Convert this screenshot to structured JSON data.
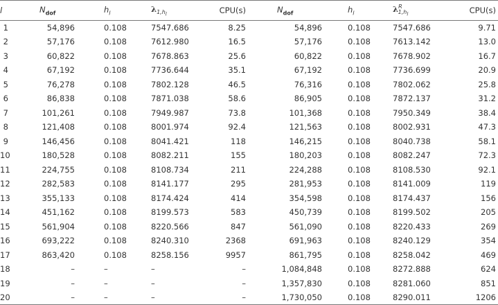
{
  "table": {
    "header": [
      {
        "main": "l"
      },
      {
        "main": "N",
        "sub": "dof"
      },
      {
        "main": "h",
        "sub": "l"
      },
      {
        "main": "λ",
        "sub": "1,h",
        "subsub": "l"
      },
      {
        "main": "CPU(s)"
      },
      {
        "main": "N",
        "sub": "dof"
      },
      {
        "main": "h",
        "sub": "l"
      },
      {
        "main": "λ",
        "sup": "R",
        "sub": "1,h",
        "subsub": "l"
      },
      {
        "main": "CPU(s)"
      }
    ],
    "rows": [
      [
        "1",
        "54,896",
        "0.108",
        "7547.686",
        "8.25",
        "54,896",
        "0.108",
        "7547.686",
        "9.71"
      ],
      [
        "2",
        "57,176",
        "0.108",
        "7612.980",
        "16.5",
        "57,176",
        "0.108",
        "7613.142",
        "13.0"
      ],
      [
        "3",
        "60,822",
        "0.108",
        "7678.863",
        "25.6",
        "60,822",
        "0.108",
        "7678.902",
        "16.7"
      ],
      [
        "4",
        "67,192",
        "0.108",
        "7736.644",
        "35.1",
        "67,192",
        "0.108",
        "7736.699",
        "20.9"
      ],
      [
        "5",
        "76,278",
        "0.108",
        "7802.128",
        "46.5",
        "76,316",
        "0.108",
        "7802.062",
        "25.8"
      ],
      [
        "6",
        "86,838",
        "0.108",
        "7871.038",
        "58.6",
        "86,905",
        "0.108",
        "7872.137",
        "31.2"
      ],
      [
        "7",
        "101,261",
        "0.108",
        "7949.987",
        "73.8",
        "101,368",
        "0.108",
        "7950.349",
        "38.4"
      ],
      [
        "8",
        "121,408",
        "0.108",
        "8001.974",
        "92.4",
        "121,563",
        "0.108",
        "8002.931",
        "47.3"
      ],
      [
        "9",
        "146,456",
        "0.108",
        "8041.421",
        "118",
        "146,215",
        "0.108",
        "8040.738",
        "58.1"
      ],
      [
        "10",
        "180,528",
        "0.108",
        "8082.211",
        "155",
        "180,203",
        "0.108",
        "8082.247",
        "72.3"
      ],
      [
        "11",
        "224,755",
        "0.108",
        "8108.734",
        "211",
        "224,288",
        "0.108",
        "8108.530",
        "92.1"
      ],
      [
        "12",
        "282,583",
        "0.108",
        "8141.177",
        "295",
        "281,953",
        "0.108",
        "8141.009",
        "119"
      ],
      [
        "13",
        "355,133",
        "0.108",
        "8174.424",
        "414",
        "354,598",
        "0.108",
        "8174.437",
        "156"
      ],
      [
        "14",
        "451,162",
        "0.108",
        "8199.573",
        "583",
        "450,739",
        "0.108",
        "8199.502",
        "205"
      ],
      [
        "15",
        "561,904",
        "0.108",
        "8220.566",
        "847",
        "561,090",
        "0.108",
        "8220.433",
        "269"
      ],
      [
        "16",
        "693,222",
        "0.108",
        "8240.310",
        "2368",
        "691,963",
        "0.108",
        "8240.129",
        "354"
      ],
      [
        "17",
        "863,420",
        "0.108",
        "8258.156",
        "9957",
        "861,795",
        "0.108",
        "8258.042",
        "469"
      ],
      [
        "18",
        "–",
        "–",
        "–",
        "–",
        "1,084,848",
        "0.108",
        "8272.888",
        "624"
      ],
      [
        "19",
        "–",
        "–",
        "–",
        "–",
        "1,357,830",
        "0.108",
        "8281.060",
        "851"
      ],
      [
        "20",
        "–",
        "–",
        "–",
        "–",
        "1,730,050",
        "0.108",
        "8290.011",
        "1206"
      ]
    ]
  }
}
